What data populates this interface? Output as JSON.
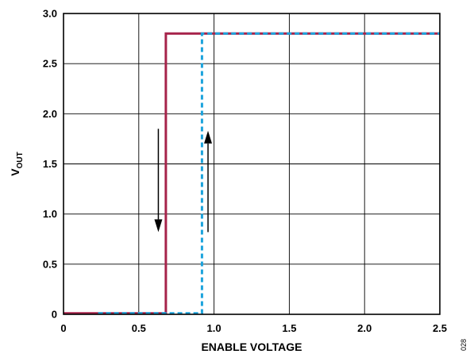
{
  "chart_data": {
    "type": "line",
    "title": "",
    "xlabel": "ENABLE VOLTAGE",
    "ylabel": {
      "main": "V",
      "sub": "OUT"
    },
    "xlim": [
      0,
      2.5
    ],
    "ylim": [
      0,
      3.0
    ],
    "x_ticks": [
      0,
      0.5,
      1.0,
      1.5,
      2.0,
      2.5
    ],
    "x_tick_labels": [
      "0",
      "0.5",
      "1.0",
      "1.5",
      "2.0",
      "2.5"
    ],
    "y_ticks": [
      0,
      0.5,
      1.0,
      1.5,
      2.0,
      2.5,
      3.0
    ],
    "y_tick_labels": [
      "0",
      "0.5",
      "1.0",
      "1.5",
      "2.0",
      "2.5",
      "3.0"
    ],
    "grid": true,
    "legend": "none",
    "series": [
      {
        "color": "#a6234a",
        "style": "solid",
        "x": [
          0,
          0.68,
          0.68,
          2.5
        ],
        "y": [
          0.01,
          0.01,
          2.8,
          2.8
        ]
      },
      {
        "color": "#1ba3dc",
        "style": "dashed",
        "x": [
          0.23,
          0.92,
          0.92,
          2.5
        ],
        "y": [
          0.01,
          0.01,
          2.8,
          2.8
        ]
      }
    ],
    "annotations": [
      {
        "kind": "arrow",
        "direction": "down",
        "x": 0.63,
        "y_from": 1.85,
        "y_to": 0.82
      },
      {
        "kind": "arrow",
        "direction": "up",
        "x": 0.96,
        "y_from": 0.82,
        "y_to": 1.83
      }
    ],
    "figure_id": "028",
    "colors": {
      "axis": "#000000",
      "grid": "#000000"
    }
  }
}
